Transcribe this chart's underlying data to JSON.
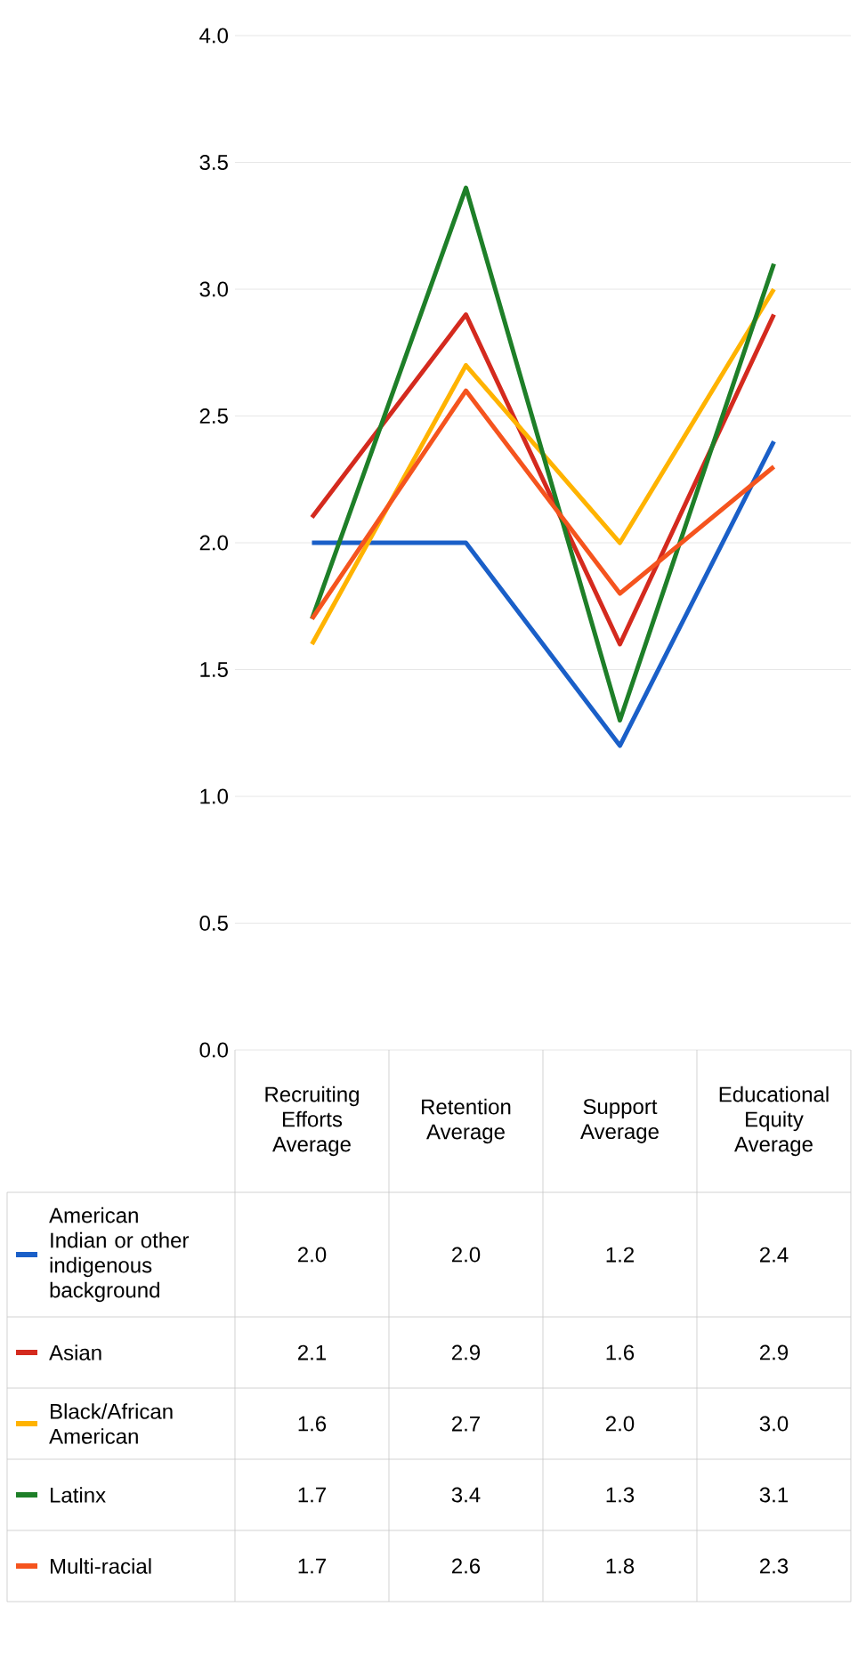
{
  "chart_data": {
    "type": "line",
    "categories": [
      "Recruiting Efforts Average",
      "Retention Average",
      "Support Average",
      "Educational Equity Average"
    ],
    "series": [
      {
        "name": "American Indian or other indigenous background",
        "color": "#1a5fc8",
        "values": [
          2.0,
          2.0,
          1.2,
          2.4
        ],
        "value_labels": [
          "2.0",
          "2.0",
          "1.2",
          "2.4"
        ]
      },
      {
        "name": "Asian",
        "color": "#d42a1e",
        "values": [
          2.1,
          2.9,
          1.6,
          2.9
        ],
        "value_labels": [
          "2.1",
          "2.9",
          "1.6",
          "2.9"
        ]
      },
      {
        "name": "Black/African American",
        "color": "#ffb300",
        "values": [
          1.6,
          2.7,
          2.0,
          3.0
        ],
        "value_labels": [
          "1.6",
          "2.7",
          "2.0",
          "3.0"
        ]
      },
      {
        "name": "Latinx",
        "color": "#1e7f28",
        "values": [
          1.7,
          3.4,
          1.3,
          3.1
        ],
        "value_labels": [
          "1.7",
          "3.4",
          "1.3",
          "3.1"
        ]
      },
      {
        "name": "Multi-racial",
        "color": "#f5541e",
        "values": [
          1.7,
          2.6,
          1.8,
          2.3
        ],
        "value_labels": [
          "1.7",
          "2.6",
          "1.8",
          "2.3"
        ]
      }
    ],
    "ylim": [
      0,
      4
    ],
    "yticks": [
      {
        "value": 0,
        "label": "0.0"
      },
      {
        "value": 0.5,
        "label": "0.5"
      },
      {
        "value": 1,
        "label": "1.0"
      },
      {
        "value": 1.5,
        "label": "1.5"
      },
      {
        "value": 2,
        "label": "2.0"
      },
      {
        "value": 2.5,
        "label": "2.5"
      },
      {
        "value": 3,
        "label": "3.0"
      },
      {
        "value": 3.5,
        "label": "3.5"
      },
      {
        "value": 4,
        "label": "4.0"
      }
    ],
    "grid": "y",
    "legend": "left"
  }
}
